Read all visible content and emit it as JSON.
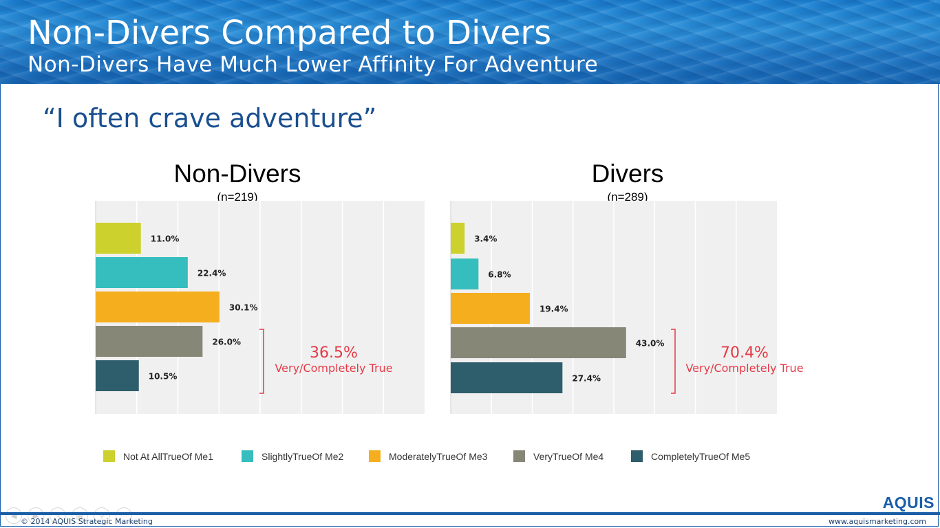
{
  "header": {
    "title": "Non-Divers Compared to Divers",
    "subtitle": "Non-Divers Have Much Lower Affinity For Adventure"
  },
  "quote": "“I often crave adventure”",
  "legend": [
    {
      "label": "Not At AllTrueOf Me1",
      "color": "#cdd12e"
    },
    {
      "label": "SlightlyTrueOf Me2",
      "color": "#36bdbd"
    },
    {
      "label": "ModeratelyTrueOf Me3",
      "color": "#f5ae1e"
    },
    {
      "label": "VeryTrueOf Me4",
      "color": "#878778"
    },
    {
      "label": "CompletelyTrueOf Me5",
      "color": "#2e5d6b"
    }
  ],
  "chart_data": [
    {
      "type": "bar",
      "orientation": "horizontal",
      "title": "Non-Divers",
      "subtitle": "(n=219)",
      "categories": [
        "Not At AllTrueOf Me1",
        "SlightlyTrueOf Me2",
        "ModeratelyTrueOf Me3",
        "VeryTrueOf Me4",
        "CompletelyTrueOf Me5"
      ],
      "values": [
        11.0,
        22.4,
        30.1,
        26.0,
        10.5
      ],
      "labels": [
        "11.0%",
        "22.4%",
        "30.1%",
        "26.0%",
        "10.5%"
      ],
      "xlim": [
        0,
        80
      ],
      "grid": true,
      "annotation": {
        "value": "36.5%",
        "text": "Very/Completely True"
      }
    },
    {
      "type": "bar",
      "orientation": "horizontal",
      "title": "Divers",
      "subtitle": "(n=289)",
      "categories": [
        "Not At AllTrueOf Me1",
        "SlightlyTrueOf Me2",
        "ModeratelyTrueOf Me3",
        "VeryTrueOf Me4",
        "CompletelyTrueOf Me5"
      ],
      "values": [
        3.4,
        6.8,
        19.4,
        43.0,
        27.4
      ],
      "labels": [
        "3.4%",
        "6.8%",
        "19.4%",
        "43.0%",
        "27.4%"
      ],
      "xlim": [
        0,
        80
      ],
      "grid": true,
      "annotation": {
        "value": "70.4%",
        "text": "Very/Completely True"
      }
    }
  ],
  "footer": {
    "copyright": "© 2014 AQUIS Strategic Marketing",
    "website": "www.aquismarketing.com",
    "logo": "AQUIS"
  }
}
